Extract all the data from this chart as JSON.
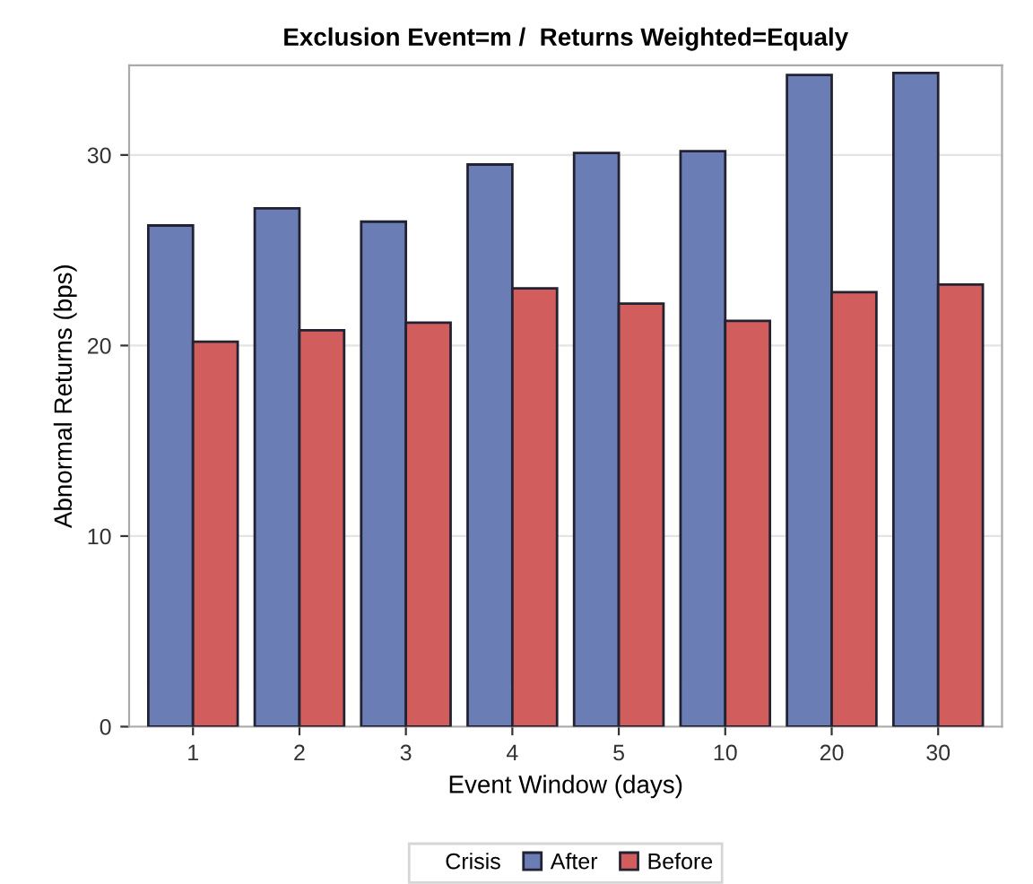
{
  "chart_data": {
    "type": "bar",
    "title": "Exclusion Event=m /  Returns Weighted=Equaly",
    "xlabel": "Event Window (days)",
    "ylabel": "Abnormal Returns (bps)",
    "legend_title": "Crisis",
    "categories": [
      "1",
      "2",
      "3",
      "4",
      "5",
      "10",
      "20",
      "30"
    ],
    "series": [
      {
        "name": "After",
        "color": "#6b7db5",
        "values": [
          26.3,
          27.2,
          26.5,
          29.5,
          30.1,
          30.2,
          34.2,
          34.3
        ]
      },
      {
        "name": "Before",
        "color": "#d25d5d",
        "values": [
          20.2,
          20.8,
          21.2,
          23.0,
          22.2,
          21.3,
          22.8,
          23.2
        ]
      }
    ],
    "ylim": [
      0,
      34.7
    ],
    "yticks": [
      0,
      10,
      20,
      30
    ],
    "grid": "y",
    "legend": "bottom"
  }
}
